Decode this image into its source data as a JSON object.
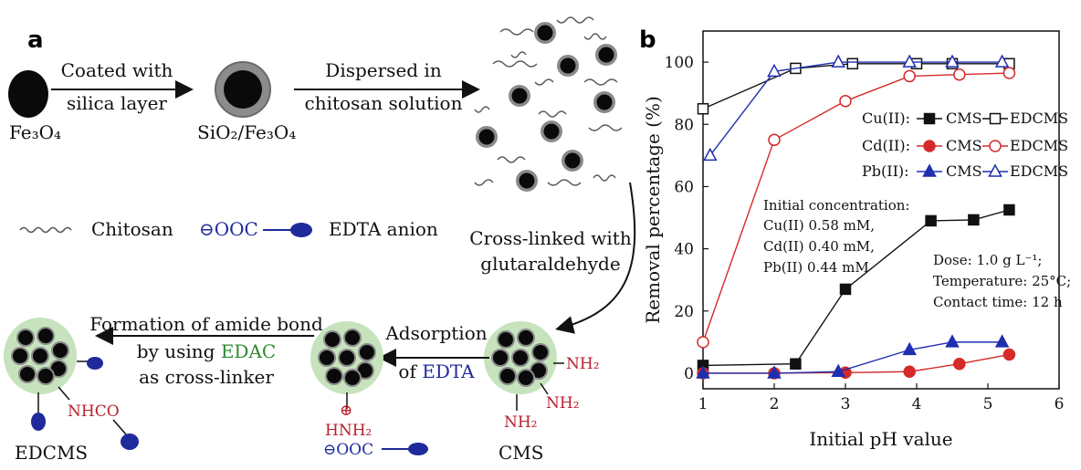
{
  "panel_a": {
    "letter": "a",
    "fe3o4": "Fe₃O₄",
    "step1_line1": "Coated with",
    "step1_line2": "silica layer",
    "sio2fe3o4": "SiO₂/Fe₃O₄",
    "step2_line1": "Dispersed in",
    "step2_line2": "chitosan solution",
    "legend_chitosan": "Chitosan",
    "legend_edta_prefix": "⊖OOC",
    "legend_edta": "EDTA anion",
    "step3_line1": "Cross-linked with",
    "step3_line2": "glutaraldehyde",
    "cms": "CMS",
    "nh2": "NH₂",
    "step4_line1": "Adsorption",
    "step4_line2_a": "of ",
    "step4_line2_b": "EDTA",
    "hnh2_plus": "⊕",
    "hnh2": "HNH₂",
    "ooc_minus": "⊖OOC",
    "step5_line1": "Formation of amide bond",
    "step5_line2_a": "by using ",
    "step5_line2_b": "EDAC",
    "step5_line3": "as cross-linker",
    "nhco": "NHCO",
    "edcms": "EDCMS"
  },
  "chart_data": {
    "letter": "b",
    "type": "line",
    "xlabel": "Initial pH value",
    "ylabel": "Removal percentage (%)",
    "xlim": [
      1,
      6
    ],
    "ylim": [
      0,
      100
    ],
    "xticks": [
      "1",
      "2",
      "3",
      "4",
      "5",
      "6"
    ],
    "yticks": [
      "0",
      "20",
      "40",
      "60",
      "80",
      "100"
    ],
    "legend": {
      "rows": [
        {
          "metal": "Cu(II):",
          "a": "CMS",
          "b": "EDCMS"
        },
        {
          "metal": "Cd(II):",
          "a": "CMS",
          "b": "EDCMS"
        },
        {
          "metal": "Pb(II):",
          "a": "CMS",
          "b": "EDCMS"
        }
      ],
      "placement": "top-right"
    },
    "annotations": {
      "conc_title": "Initial concentration:",
      "conc_cu": "Cu(II) 0.58 mM,",
      "conc_cd": "Cd(II) 0.40 mM,",
      "conc_pb": "Pb(II) 0.44 mM",
      "dose": "Dose: 1.0 g L⁻¹;",
      "temperature": "Temperature: 25°C;",
      "contact": "Contact time: 12 h"
    },
    "series": [
      {
        "name": "Cu(II) CMS",
        "color": "#111111",
        "marker": "square",
        "filled": true,
        "x": [
          1.0,
          2.3,
          3.0,
          4.2,
          4.8,
          5.3
        ],
        "y": [
          2.5,
          3,
          27,
          49,
          49.3,
          52.5
        ]
      },
      {
        "name": "Cu(II) EDCMS",
        "color": "#111111",
        "marker": "square",
        "filled": false,
        "x": [
          1.0,
          2.3,
          3.1,
          4.0,
          4.5,
          5.3
        ],
        "y": [
          85,
          98,
          99.5,
          99.5,
          99.5,
          99.5
        ]
      },
      {
        "name": "Cd(II) CMS",
        "color": "#d42a2a",
        "marker": "circle",
        "filled": true,
        "x": [
          1.0,
          2.0,
          3.0,
          3.9,
          4.6,
          5.3
        ],
        "y": [
          0,
          0,
          0.2,
          0.5,
          3,
          6
        ]
      },
      {
        "name": "Cd(II) EDCMS",
        "color": "#d42a2a",
        "marker": "circle",
        "filled": false,
        "x": [
          1.0,
          2.0,
          3.0,
          3.9,
          4.6,
          5.3
        ],
        "y": [
          10,
          75,
          87.5,
          95.5,
          96,
          96.5
        ]
      },
      {
        "name": "Pb(II) CMS",
        "color": "#1f2fb0",
        "marker": "triangle",
        "filled": true,
        "x": [
          1.0,
          2.0,
          2.9,
          3.9,
          4.5,
          5.2
        ],
        "y": [
          0,
          0,
          0.5,
          7.5,
          10,
          10
        ]
      },
      {
        "name": "Pb(II) EDCMS",
        "color": "#1f2fb0",
        "marker": "triangle",
        "filled": false,
        "x": [
          1.1,
          2.0,
          2.9,
          3.9,
          4.5,
          5.2
        ],
        "y": [
          70,
          97,
          100,
          100,
          100,
          100
        ]
      }
    ]
  }
}
